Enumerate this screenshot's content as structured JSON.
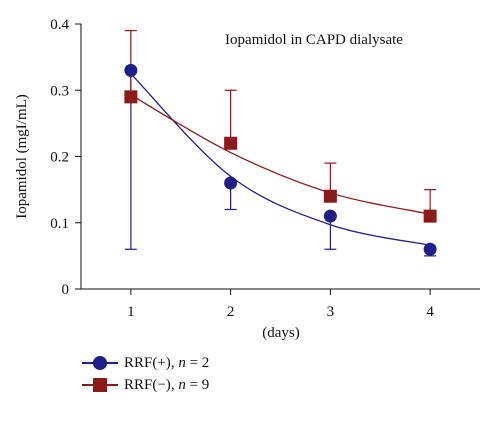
{
  "chart_data": {
    "type": "line",
    "title": "Iopamidol in CAPD dialysate",
    "xlabel": "(days)",
    "ylabel": "Iopamidol (mgI/mL)",
    "x": [
      1,
      2,
      3,
      4
    ],
    "xlim": [
      0.5,
      4.5
    ],
    "ylim": [
      0,
      0.4
    ],
    "xticks": [
      "1",
      "2",
      "3",
      "4"
    ],
    "yticks": [
      "0",
      "0.1",
      "0.2",
      "0.3",
      "0.4"
    ],
    "grid": false,
    "legend_position": "bottom-left",
    "series": [
      {
        "name": "RRF(+)",
        "n_label": "n",
        "n_value": "2",
        "marker": "circle",
        "color": "#1f1f8a",
        "values": [
          0.33,
          0.16,
          0.11,
          0.06
        ],
        "error_low": [
          0.06,
          0.12,
          0.06,
          0.05
        ],
        "error_high": [
          0.33,
          0.16,
          0.11,
          0.06
        ]
      },
      {
        "name": "RRF(−)",
        "n_label": "n",
        "n_value": "9",
        "marker": "square",
        "color": "#8b1a1a",
        "values": [
          0.29,
          0.22,
          0.14,
          0.11
        ],
        "error_low": [
          0.29,
          0.22,
          0.14,
          0.11
        ],
        "error_high": [
          0.39,
          0.3,
          0.19,
          0.15
        ]
      }
    ]
  }
}
